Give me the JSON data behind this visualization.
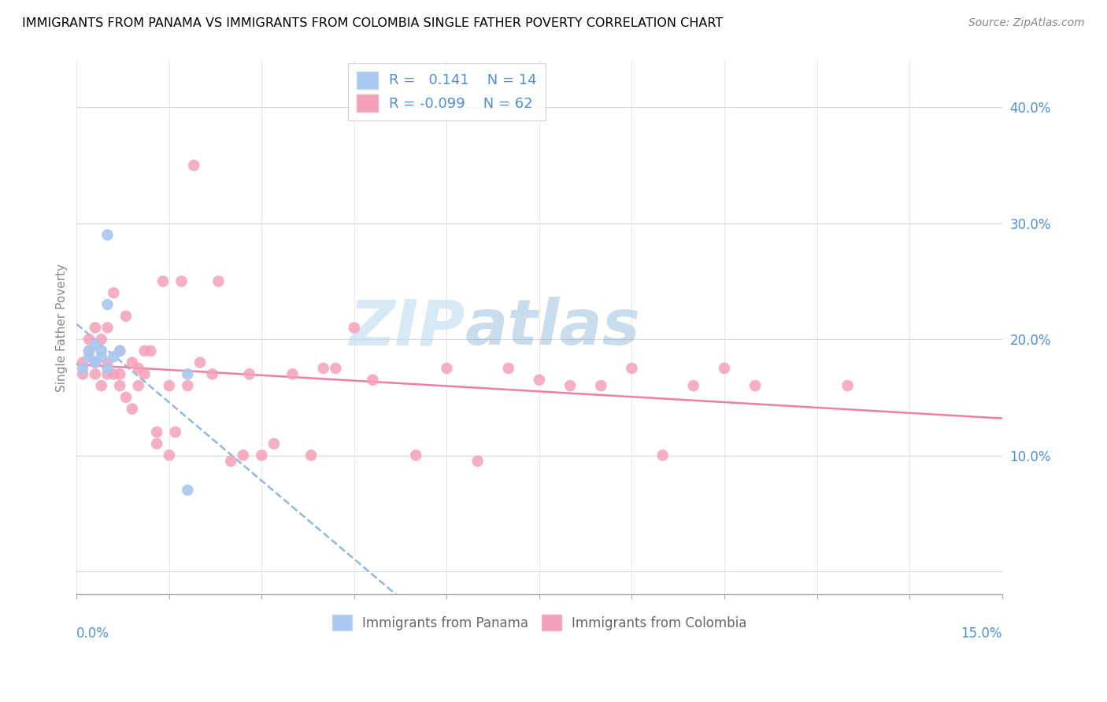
{
  "title": "IMMIGRANTS FROM PANAMA VS IMMIGRANTS FROM COLOMBIA SINGLE FATHER POVERTY CORRELATION CHART",
  "source": "Source: ZipAtlas.com",
  "ylabel": "Single Father Poverty",
  "right_yticklabels": [
    "",
    "10.0%",
    "20.0%",
    "30.0%",
    "40.0%"
  ],
  "right_ytick_vals": [
    0.0,
    0.1,
    0.2,
    0.3,
    0.4
  ],
  "xlim": [
    0.0,
    0.15
  ],
  "ylim": [
    -0.02,
    0.44
  ],
  "R_panama": 0.141,
  "N_panama": 14,
  "R_colombia": -0.099,
  "N_colombia": 62,
  "color_panama": "#a8c8f0",
  "color_colombia": "#f4a0b8",
  "color_panama_line": "#90b8e0",
  "color_colombia_line": "#f080a0",
  "color_text_blue": "#5090d0",
  "watermark_zip": "ZIP",
  "watermark_atlas": "atlas",
  "panama_x": [
    0.001,
    0.002,
    0.002,
    0.003,
    0.003,
    0.004,
    0.004,
    0.005,
    0.005,
    0.005,
    0.006,
    0.007,
    0.018,
    0.018
  ],
  "panama_y": [
    0.175,
    0.185,
    0.19,
    0.18,
    0.195,
    0.19,
    0.185,
    0.29,
    0.23,
    0.175,
    0.185,
    0.19,
    0.07,
    0.17
  ],
  "colombia_x": [
    0.001,
    0.001,
    0.002,
    0.002,
    0.003,
    0.003,
    0.003,
    0.004,
    0.004,
    0.005,
    0.005,
    0.005,
    0.006,
    0.006,
    0.007,
    0.007,
    0.007,
    0.008,
    0.008,
    0.009,
    0.009,
    0.01,
    0.01,
    0.011,
    0.011,
    0.012,
    0.013,
    0.013,
    0.014,
    0.015,
    0.015,
    0.016,
    0.017,
    0.018,
    0.019,
    0.02,
    0.022,
    0.023,
    0.025,
    0.027,
    0.028,
    0.03,
    0.032,
    0.035,
    0.038,
    0.04,
    0.042,
    0.045,
    0.048,
    0.055,
    0.06,
    0.065,
    0.07,
    0.075,
    0.08,
    0.085,
    0.09,
    0.095,
    0.1,
    0.105,
    0.11,
    0.125
  ],
  "colombia_y": [
    0.17,
    0.18,
    0.19,
    0.2,
    0.17,
    0.18,
    0.21,
    0.16,
    0.2,
    0.17,
    0.18,
    0.21,
    0.24,
    0.17,
    0.17,
    0.19,
    0.16,
    0.15,
    0.22,
    0.18,
    0.14,
    0.16,
    0.175,
    0.17,
    0.19,
    0.19,
    0.11,
    0.12,
    0.25,
    0.16,
    0.1,
    0.12,
    0.25,
    0.16,
    0.35,
    0.18,
    0.17,
    0.25,
    0.095,
    0.1,
    0.17,
    0.1,
    0.11,
    0.17,
    0.1,
    0.175,
    0.175,
    0.21,
    0.165,
    0.1,
    0.175,
    0.095,
    0.175,
    0.165,
    0.16,
    0.16,
    0.175,
    0.1,
    0.16,
    0.175,
    0.16,
    0.16
  ]
}
